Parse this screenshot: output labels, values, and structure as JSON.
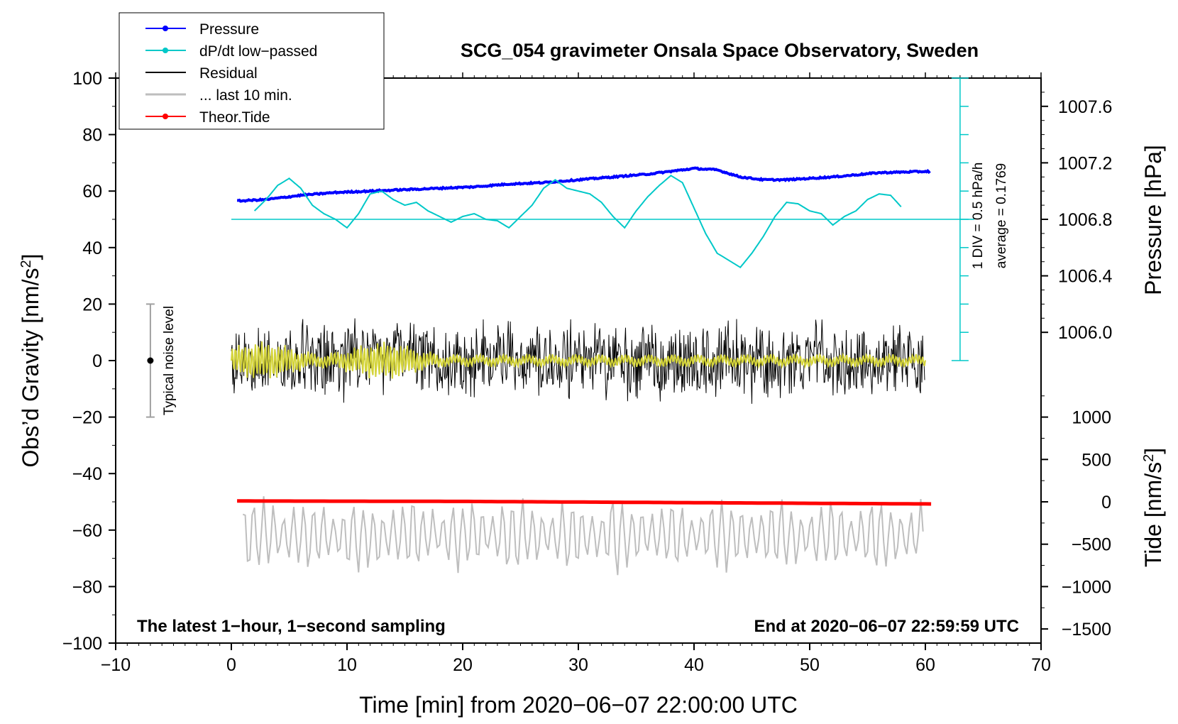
{
  "chart_data": {
    "type": "line",
    "title": "SCG_054 gravimeter Onsala Space Observatory, Sweden",
    "xlabel": "Time [min] from 2020−06−07 22:00:00 UTC",
    "ylabel_left": "Obs’d Gravity [nm/s",
    "ylabel_right_pressure": "Pressure [hPa]",
    "ylabel_right_tide": "Tide [nm/s",
    "ylabel_superscript": "2",
    "ylabel_close": "]",
    "xlim": [
      -10,
      70
    ],
    "ylim_left": [
      -100,
      100
    ],
    "xticks": [
      -10,
      0,
      10,
      20,
      30,
      40,
      50,
      60,
      70
    ],
    "xtick_labels": [
      "−10",
      "0",
      "10",
      "20",
      "30",
      "40",
      "50",
      "60",
      "70"
    ],
    "yticks_left": [
      100,
      80,
      60,
      40,
      20,
      0,
      -20,
      -40,
      -60,
      -80,
      -100
    ],
    "ytick_labels_left": [
      "100",
      "80",
      "60",
      "40",
      "20",
      "0",
      "−20",
      "−40",
      "−60",
      "−80",
      "−100"
    ],
    "pressure_axis": {
      "ticks": [
        1007.6,
        1007.2,
        1006.8,
        1006.4,
        1006.0
      ],
      "tick_labels": [
        "1007.6",
        "1007.2",
        "1006.8",
        "1006.4",
        "1006.0"
      ],
      "gravity_at_1006_8": 50,
      "gravity_per_hpa": 50
    },
    "tide_axis": {
      "ticks": [
        1000,
        500,
        0,
        -500,
        -1000,
        -1500
      ],
      "tick_labels": [
        "1000",
        "500",
        "0",
        "−500",
        "−1000",
        "−1500"
      ],
      "gravity_at_zero": -50,
      "gravity_per_nms2": 0.03
    },
    "legend": [
      {
        "label": "Pressure",
        "color": "#0000ff",
        "marker": true
      },
      {
        "label": "dP/dt low−passed",
        "color": "#00c8c8",
        "marker": true
      },
      {
        "label": "Residual",
        "color": "#000000",
        "marker": false
      },
      {
        "label": "... last 10 min.",
        "color": "#bebebe",
        "marker": false
      },
      {
        "label": "Theor.Tide",
        "color": "#ff0000",
        "marker": true
      }
    ],
    "series": [
      {
        "name": "Pressure",
        "color": "#0000ff",
        "unit": "hPa",
        "x": [
          0.5,
          3,
          6,
          9,
          12,
          15,
          18,
          21,
          24,
          27,
          30,
          33,
          36,
          38,
          40,
          42,
          44,
          46,
          48,
          52,
          56,
          60.5
        ],
        "values": [
          1006.93,
          1006.94,
          1006.97,
          1006.99,
          1007.0,
          1007.01,
          1007.02,
          1007.03,
          1007.05,
          1007.06,
          1007.08,
          1007.1,
          1007.12,
          1007.14,
          1007.16,
          1007.15,
          1007.1,
          1007.08,
          1007.08,
          1007.1,
          1007.13,
          1007.14
        ]
      },
      {
        "name": "dP/dt low-passed",
        "color": "#00c8c8",
        "unit": "nm/s2 (plot scale)",
        "x": [
          2,
          3,
          4,
          5,
          6,
          7,
          8,
          9,
          10,
          11,
          12,
          13,
          14,
          15,
          16,
          17,
          18,
          19,
          20,
          21,
          22,
          23,
          24,
          25,
          26,
          27,
          28,
          29,
          30,
          31,
          32,
          33,
          34,
          35,
          36,
          37,
          38,
          39,
          40,
          41,
          42,
          43,
          44,
          45,
          46,
          47,
          48,
          49,
          50,
          51,
          52,
          53,
          54,
          55,
          56,
          57,
          58
        ],
        "values": [
          53,
          57,
          62,
          64.5,
          61,
          55,
          52,
          50,
          47,
          52,
          59,
          60,
          57,
          55,
          56,
          53,
          51,
          49,
          51,
          52,
          50,
          49.5,
          47,
          51,
          55,
          61,
          64,
          61,
          60,
          59,
          56,
          51,
          47,
          53,
          58,
          62,
          65.5,
          63,
          54,
          45,
          38,
          35.5,
          33,
          38,
          44,
          51,
          56,
          55.5,
          53,
          52,
          48,
          51,
          53,
          57,
          59,
          58.5,
          54
        ]
      },
      {
        "name": "Residual",
        "color": "#000000",
        "x_range": [
          0,
          60
        ],
        "amplitude_range": [
          -24,
          24
        ]
      },
      {
        "name": "... last 10 min.",
        "color": "#bebebe",
        "x_range": [
          1,
          60
        ],
        "baseline": -62,
        "amplitude_range": [
          -77,
          -47
        ]
      },
      {
        "name": "Theor.Tide",
        "color": "#ff0000",
        "unit": "nm/s2",
        "x": [
          0.5,
          20,
          40,
          60.5
        ],
        "values": [
          10,
          5,
          -10,
          -25
        ]
      }
    ],
    "dpdt_scale_bar": {
      "x": 63,
      "range": [
        0,
        100
      ],
      "divisions": 10,
      "baseline": 50,
      "label1": "1 DIV = 0.5 hPa/h",
      "label2": "average = 0.1769"
    },
    "noise_level": {
      "label": "Typical noise level",
      "x": -7,
      "center": 0,
      "range": [
        -20,
        20
      ]
    },
    "annotations": {
      "left": "The latest 1−hour, 1−second sampling",
      "right": "End at 2020−06−07 22:59:59 UTC"
    }
  }
}
